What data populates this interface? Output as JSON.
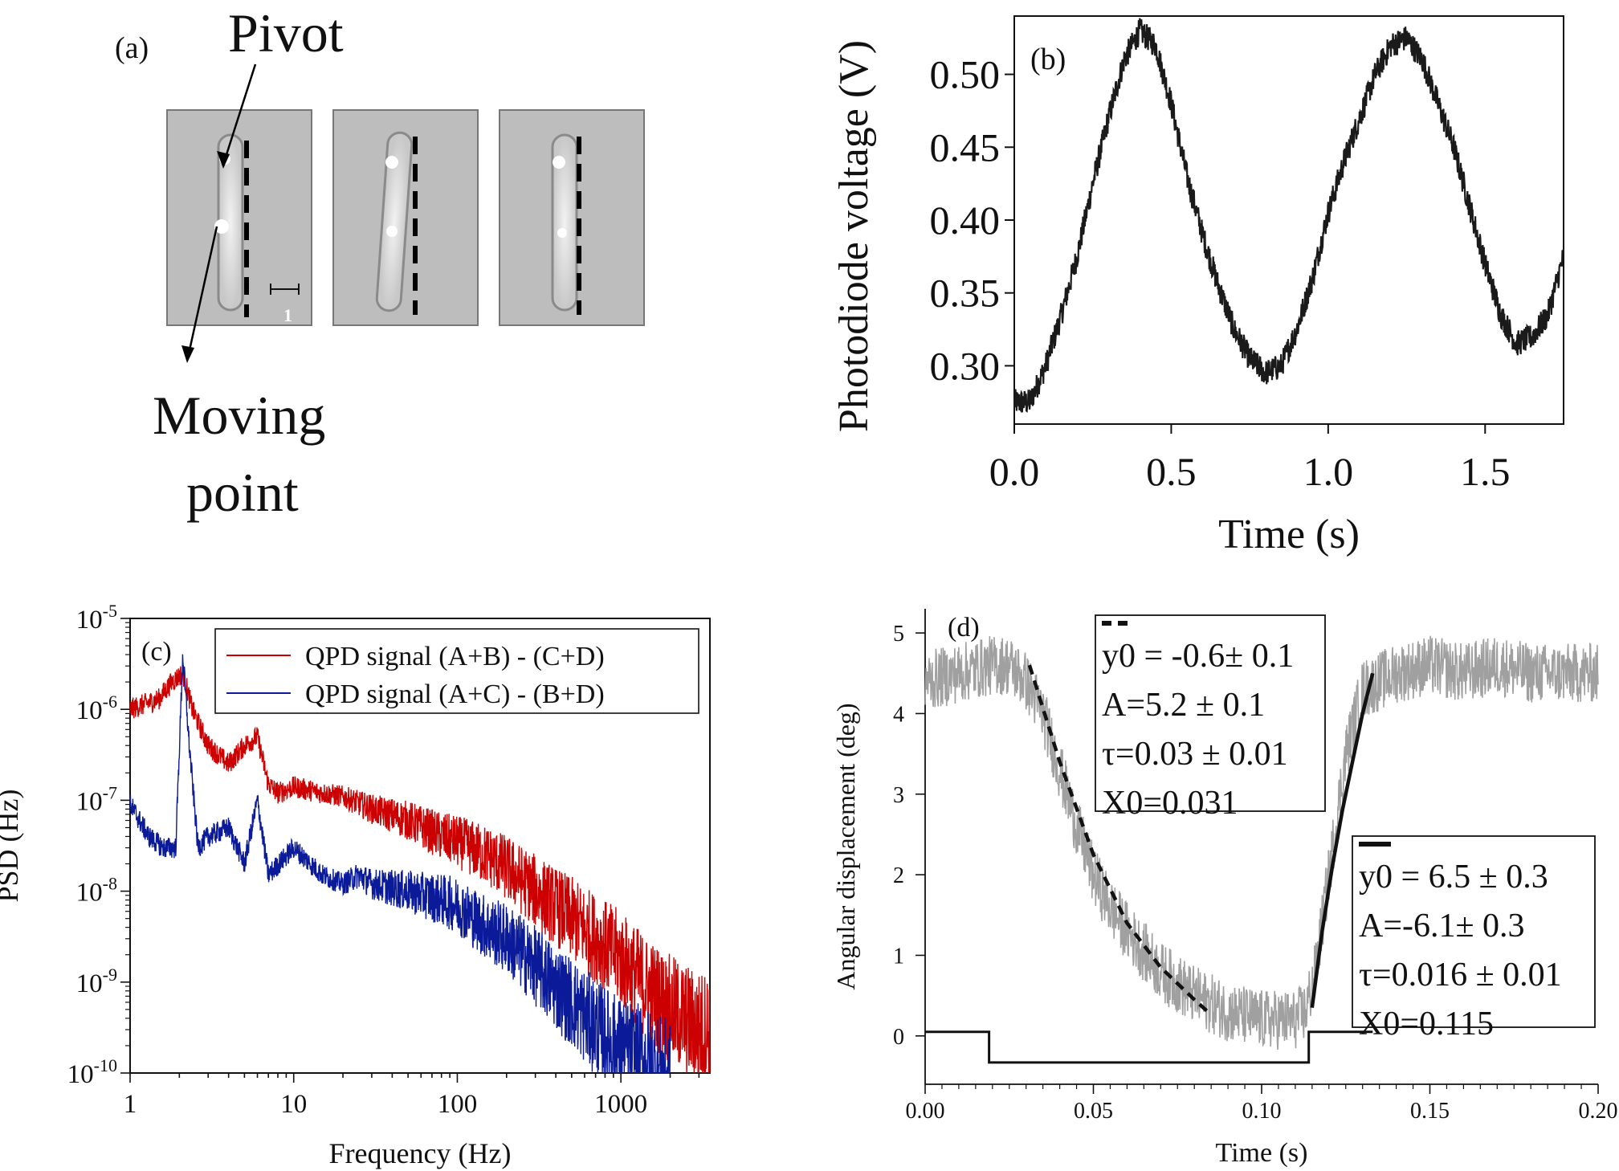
{
  "panel_a": {
    "label": "(a)",
    "pivot_label": "Pivot",
    "moving_label_line1": "Moving",
    "moving_label_line2": "point",
    "scale_label": "1"
  },
  "chart_data": [
    {
      "panel": "(b)",
      "type": "line",
      "xlabel": "Time (s)",
      "ylabel": "Photodiode voltage (V)",
      "xlim": [
        0.0,
        1.75
      ],
      "ylim": [
        0.26,
        0.54
      ],
      "xticks": [
        0.0,
        0.5,
        1.0,
        1.5
      ],
      "xtick_labels": [
        "0.0",
        "0.5",
        "1.0",
        "1.5"
      ],
      "yticks": [
        0.3,
        0.35,
        0.4,
        0.45,
        0.5
      ],
      "ytick_labels": [
        "0.30",
        "0.35",
        "0.40",
        "0.45",
        "0.50"
      ],
      "grid": false,
      "color": "#1a1a1a",
      "series": [
        {
          "x": [
            0.0,
            0.05,
            0.1,
            0.15,
            0.2,
            0.25,
            0.3,
            0.35,
            0.4,
            0.45,
            0.5,
            0.55,
            0.6,
            0.65,
            0.7,
            0.75,
            0.8,
            0.85,
            0.9,
            0.95,
            1.0,
            1.05,
            1.1,
            1.15,
            1.2,
            1.25,
            1.3,
            1.35,
            1.4,
            1.45,
            1.5,
            1.55,
            1.6,
            1.65,
            1.7,
            1.75
          ],
          "y": [
            0.275,
            0.275,
            0.3,
            0.335,
            0.375,
            0.425,
            0.47,
            0.51,
            0.53,
            0.52,
            0.48,
            0.43,
            0.39,
            0.355,
            0.325,
            0.305,
            0.295,
            0.3,
            0.325,
            0.36,
            0.405,
            0.44,
            0.47,
            0.5,
            0.52,
            0.525,
            0.51,
            0.48,
            0.45,
            0.41,
            0.37,
            0.335,
            0.315,
            0.32,
            0.335,
            0.375
          ]
        }
      ]
    },
    {
      "panel": "(c)",
      "type": "line",
      "xlabel": "Frequency (Hz)",
      "ylabel": "PSD (Hz)",
      "xscale": "log",
      "yscale": "log",
      "xlim": [
        1,
        3500
      ],
      "ylim": [
        1e-10,
        1e-05
      ],
      "xtick_labels": [
        "1",
        "10",
        "100",
        "1000"
      ],
      "ytick_labels": [
        {
          "base": "10",
          "exp": "-10"
        },
        {
          "base": "10",
          "exp": "-9"
        },
        {
          "base": "10",
          "exp": "-8"
        },
        {
          "base": "10",
          "exp": "-7"
        },
        {
          "base": "10",
          "exp": "-6"
        },
        {
          "base": "10",
          "exp": "-5"
        }
      ],
      "grid": false,
      "legend_position": "top-right",
      "series": [
        {
          "name": "QPD signal (A+B) - (C+D)",
          "color": "#cc0000",
          "x": [
            1,
            1.5,
            1.8,
            2.1,
            2.4,
            3,
            4,
            5,
            6,
            7,
            8,
            10,
            15,
            20,
            30,
            50,
            80,
            100,
            150,
            200,
            300,
            500,
            800,
            1000,
            1500,
            2000,
            3000,
            3500
          ],
          "y": [
            1e-06,
            1.3e-06,
            2e-06,
            2.5e-06,
            1e-06,
            4e-07,
            2.5e-07,
            4e-07,
            5e-07,
            1.5e-07,
            1.2e-07,
            1.4e-07,
            1.2e-07,
            1.1e-07,
            8e-08,
            6e-08,
            4e-08,
            3.5e-08,
            2.5e-08,
            1.8e-08,
            1e-08,
            5e-09,
            2.5e-09,
            1.8e-09,
            8e-10,
            5e-10,
            3e-10,
            3e-10
          ]
        },
        {
          "name": "QPD signal (A+C) - (B+D)",
          "color": "#0a1a99",
          "x": [
            1,
            1.3,
            1.6,
            1.9,
            2.1,
            2.3,
            2.6,
            3,
            4,
            5,
            6,
            7,
            10,
            15,
            20,
            25,
            30,
            50,
            80,
            100,
            150,
            200,
            300,
            500,
            800,
            1000,
            1500,
            2000
          ],
          "y": [
            9e-08,
            4e-08,
            3e-08,
            3e-08,
            4e-06,
            4e-07,
            3e-08,
            4e-08,
            5e-08,
            2e-08,
            1e-07,
            1.5e-08,
            3e-08,
            1.5e-08,
            1.2e-08,
            1.5e-08,
            1.2e-08,
            1e-08,
            8e-09,
            7e-09,
            4e-09,
            3e-09,
            1.5e-09,
            6e-10,
            2.5e-10,
            1.8e-10,
            1.2e-10,
            8e-11
          ]
        }
      ]
    },
    {
      "panel": "(d)",
      "type": "line",
      "xlabel": "Time (s)",
      "ylabel": "Angular displacement (deg)",
      "xlim": [
        0.0,
        0.2
      ],
      "ylim": [
        -0.6,
        5.3
      ],
      "xticks": [
        0.0,
        0.05,
        0.1,
        0.15,
        0.2
      ],
      "xtick_labels": [
        "0.00",
        "0.05",
        "0.10",
        "0.15",
        "0.20"
      ],
      "yticks": [
        0,
        1,
        2,
        3,
        4,
        5
      ],
      "ytick_labels": [
        "0",
        "1",
        "2",
        "3",
        "4",
        "5"
      ],
      "grid": false,
      "series": [
        {
          "role": "data",
          "color": "#a0a0a0",
          "x": [
            0,
            0.01,
            0.02,
            0.025,
            0.03,
            0.035,
            0.04,
            0.045,
            0.05,
            0.055,
            0.06,
            0.07,
            0.08,
            0.09,
            0.1,
            0.11,
            0.113,
            0.116,
            0.12,
            0.125,
            0.13,
            0.14,
            0.15,
            0.16,
            0.17,
            0.18,
            0.19,
            0.2
          ],
          "y": [
            4.4,
            4.5,
            4.6,
            4.6,
            4.4,
            4.0,
            3.3,
            2.6,
            2.0,
            1.6,
            1.3,
            0.8,
            0.5,
            0.3,
            0.2,
            0.2,
            0.3,
            0.8,
            2.0,
            3.5,
            4.3,
            4.5,
            4.6,
            4.5,
            4.6,
            4.5,
            4.5,
            4.5
          ]
        },
        {
          "role": "fit-dashed",
          "color": "#111111",
          "x": [
            0.031,
            0.04,
            0.05,
            0.06,
            0.07,
            0.08,
            0.084
          ],
          "y": [
            4.6,
            3.4,
            2.25,
            1.4,
            0.85,
            0.45,
            0.3
          ]
        },
        {
          "role": "fit-solid",
          "color": "#111111",
          "x": [
            0.115,
            0.118,
            0.121,
            0.124,
            0.127,
            0.13,
            0.133
          ],
          "y": [
            0.35,
            1.3,
            2.1,
            2.8,
            3.4,
            4.0,
            4.5
          ]
        },
        {
          "role": "step",
          "color": "#111111",
          "x": [
            0.0,
            0.019,
            0.019,
            0.114,
            0.114,
            0.133
          ],
          "y": [
            0.05,
            0.05,
            -0.33,
            -0.33,
            0.05,
            0.05
          ]
        }
      ],
      "annotation_dashed": {
        "symbol": "dashed",
        "lines": [
          "y0 = -0.6± 0.1",
          "A=5.2 ± 0.1",
          "τ=0.03 ± 0.01",
          "X0=0.031"
        ]
      },
      "annotation_solid": {
        "symbol": "solid",
        "lines": [
          "y0 = 6.5 ± 0.3",
          "A=-6.1± 0.3",
          "τ=0.016 ± 0.01",
          "X0=0.115"
        ]
      }
    }
  ]
}
